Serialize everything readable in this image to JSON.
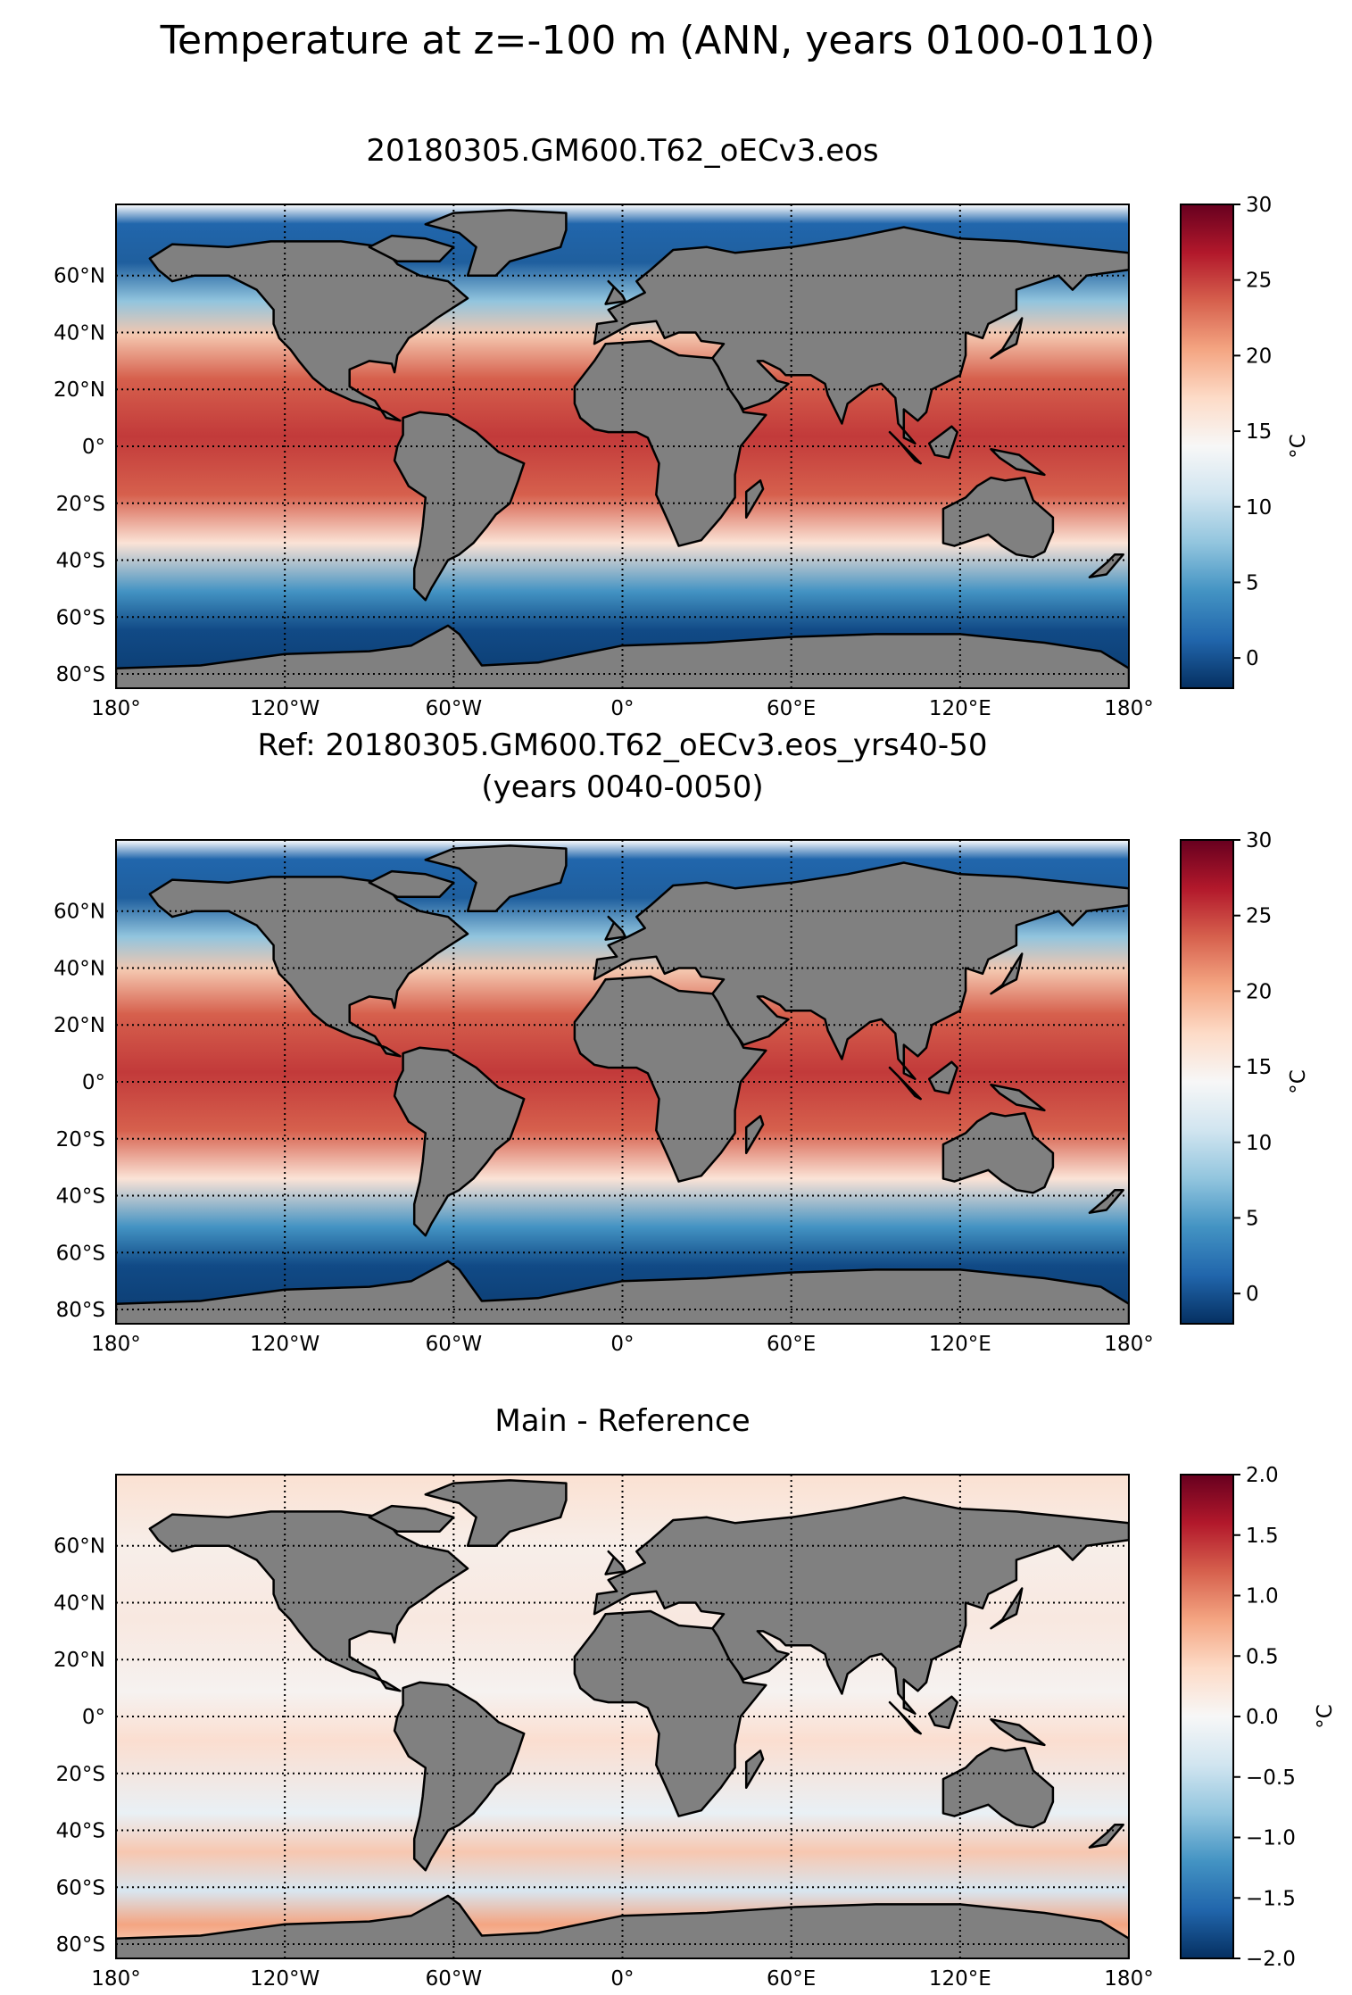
{
  "figure": {
    "title": "Temperature at z=-100 m (ANN, years 0100-0110)"
  },
  "chart_data": [
    {
      "type": "heatmap",
      "title": "20180305.GM600.T62_oECv3.eos",
      "title_lines": [
        "20180305.GM600.T62_oECv3.eos"
      ],
      "xlim": [
        -180,
        180
      ],
      "ylim": [
        -85,
        85
      ],
      "x_ticks": [
        -180,
        -120,
        -60,
        0,
        60,
        120,
        180
      ],
      "x_tick_labels": [
        "180°",
        "120°W",
        "60°W",
        "0°",
        "60°E",
        "120°E",
        "180°"
      ],
      "y_ticks": [
        60,
        40,
        20,
        0,
        -20,
        -40,
        -60,
        -80
      ],
      "y_tick_labels": [
        "60°N",
        "40°N",
        "20°N",
        "0°",
        "20°S",
        "40°S",
        "60°S",
        "80°S"
      ],
      "grid": true,
      "colormap": "RdBu_r",
      "colorbar": {
        "label": "°C",
        "range": [
          -2,
          30
        ],
        "ticks": [
          0,
          5,
          10,
          15,
          20,
          25,
          30
        ],
        "tick_labels": [
          "0",
          "5",
          "10",
          "15",
          "20",
          "25",
          "30"
        ]
      },
      "land_color": "#808080"
    },
    {
      "type": "heatmap",
      "title": "Ref: 20180305.GM600.T62_oECv3.eos_yrs40-50 (years 0040-0050)",
      "title_lines": [
        "Ref: 20180305.GM600.T62_oECv3.eos_yrs40-50",
        "(years 0040-0050)"
      ],
      "xlim": [
        -180,
        180
      ],
      "ylim": [
        -85,
        85
      ],
      "x_ticks": [
        -180,
        -120,
        -60,
        0,
        60,
        120,
        180
      ],
      "x_tick_labels": [
        "180°",
        "120°W",
        "60°W",
        "0°",
        "60°E",
        "120°E",
        "180°"
      ],
      "y_ticks": [
        60,
        40,
        20,
        0,
        -20,
        -40,
        -60,
        -80
      ],
      "y_tick_labels": [
        "60°N",
        "40°N",
        "20°N",
        "0°",
        "20°S",
        "40°S",
        "60°S",
        "80°S"
      ],
      "grid": true,
      "colormap": "RdBu_r",
      "colorbar": {
        "label": "°C",
        "range": [
          -2,
          30
        ],
        "ticks": [
          0,
          5,
          10,
          15,
          20,
          25,
          30
        ],
        "tick_labels": [
          "0",
          "5",
          "10",
          "15",
          "20",
          "25",
          "30"
        ]
      },
      "land_color": "#808080"
    },
    {
      "type": "heatmap",
      "title": "Main - Reference",
      "title_lines": [
        "Main - Reference"
      ],
      "xlim": [
        -180,
        180
      ],
      "ylim": [
        -85,
        85
      ],
      "x_ticks": [
        -180,
        -120,
        -60,
        0,
        60,
        120,
        180
      ],
      "x_tick_labels": [
        "180°",
        "120°W",
        "60°W",
        "0°",
        "60°E",
        "120°E",
        "180°"
      ],
      "y_ticks": [
        60,
        40,
        20,
        0,
        -20,
        -40,
        -60,
        -80
      ],
      "y_tick_labels": [
        "60°N",
        "40°N",
        "20°N",
        "0°",
        "20°S",
        "40°S",
        "60°S",
        "80°S"
      ],
      "grid": true,
      "colormap": "RdBu_r",
      "colorbar": {
        "label": "°C",
        "range": [
          -2,
          2
        ],
        "ticks": [
          2.0,
          1.5,
          1.0,
          0.5,
          0.0,
          -0.5,
          -1.0,
          -1.5,
          -2.0
        ],
        "tick_labels": [
          "2.0",
          "1.5",
          "1.0",
          "0.5",
          "0.0",
          "−0.5",
          "−1.0",
          "−1.5",
          "−2.0"
        ]
      },
      "land_color": "#808080"
    }
  ]
}
